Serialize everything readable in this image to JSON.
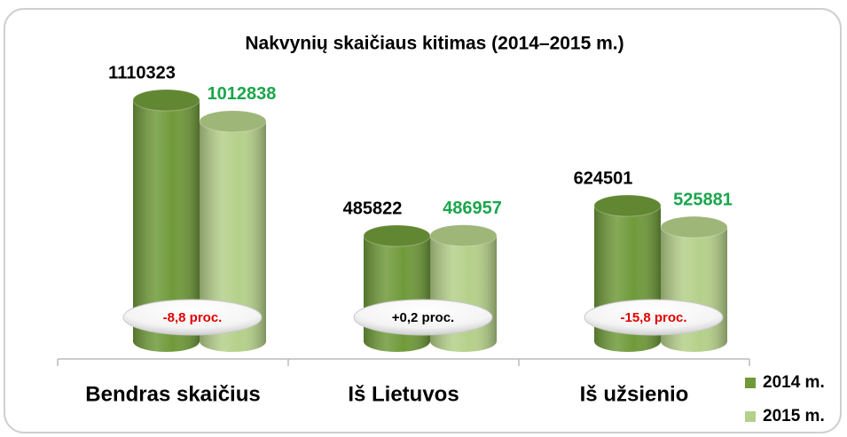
{
  "chart_data": {
    "type": "bar",
    "title": "Nakvynių skaičiaus kitimas (2014–2015 m.)",
    "categories": [
      "Bendras skaičius",
      "Iš Lietuvos",
      "Iš užsienio"
    ],
    "series": [
      {
        "name": "2014 m.",
        "color": "#6f9a3a",
        "label_color": "#000000",
        "values": [
          1110323,
          485822,
          624501
        ]
      },
      {
        "name": "2015 m.",
        "color": "#b5d08a",
        "label_color": "#1aa64b",
        "values": [
          1012838,
          486957,
          525881
        ]
      }
    ],
    "annotations": [
      {
        "text": "-8,8 proc.",
        "color": "#e00000"
      },
      {
        "text": "+0,2 proc.",
        "color": "#000000"
      },
      {
        "text": "-15,8 proc.",
        "color": "#e00000"
      }
    ],
    "legend": "right"
  }
}
